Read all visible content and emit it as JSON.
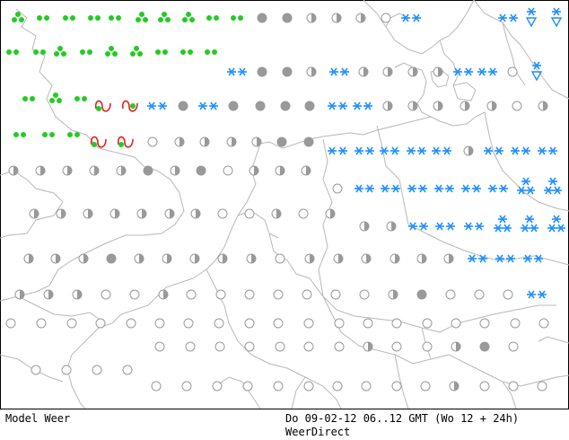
{
  "footer": {
    "left": "Model Weer",
    "right": "Do 09-02-12 06..12 GMT (Wo 12 + 24h)",
    "source": "WeerDirect"
  },
  "colors": {
    "coast": "#b8b8b8",
    "frame": "#000000",
    "drizzle": "#22cc22",
    "snow": "#1e90ff",
    "overcast": "#999999",
    "partly_fill": "#999999",
    "clear_outline": "#999999",
    "thunder": "#dd2222"
  },
  "legend_icons": {
    "drizzle": "drizzle-icon",
    "rain": "rain-icon",
    "snow": "snow-icon",
    "snow_shower": "snow-shower-icon",
    "overcast": "overcast-icon",
    "partly_cloudy": "partly-cloudy-icon",
    "clear": "clear-icon",
    "thunderstorm": "thunderstorm-icon"
  }
}
